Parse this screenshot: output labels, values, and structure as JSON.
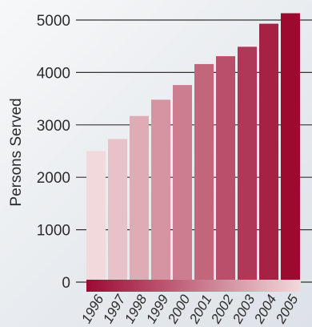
{
  "chart_data": {
    "type": "bar",
    "categories": [
      "1996",
      "1997",
      "1998",
      "1999",
      "2000",
      "2001",
      "2002",
      "2003",
      "2004",
      "2005"
    ],
    "values": [
      2500,
      2730,
      3170,
      3480,
      3760,
      4160,
      4310,
      4490,
      4930,
      5130
    ],
    "title": "",
    "xlabel": "",
    "ylabel": "Persons Served",
    "ylim": [
      0,
      5000
    ],
    "yticks": [
      0,
      1000,
      2000,
      3000,
      4000,
      5000
    ],
    "grid": true,
    "legend": "none",
    "colors": {
      "bar_start": "#f2d9db",
      "bar_end": "#9c0a30",
      "axis_band_start": "#9c0a30",
      "axis_band_end": "#f2d9db",
      "gridline": "#333333",
      "text": "#2b2b2b"
    }
  }
}
